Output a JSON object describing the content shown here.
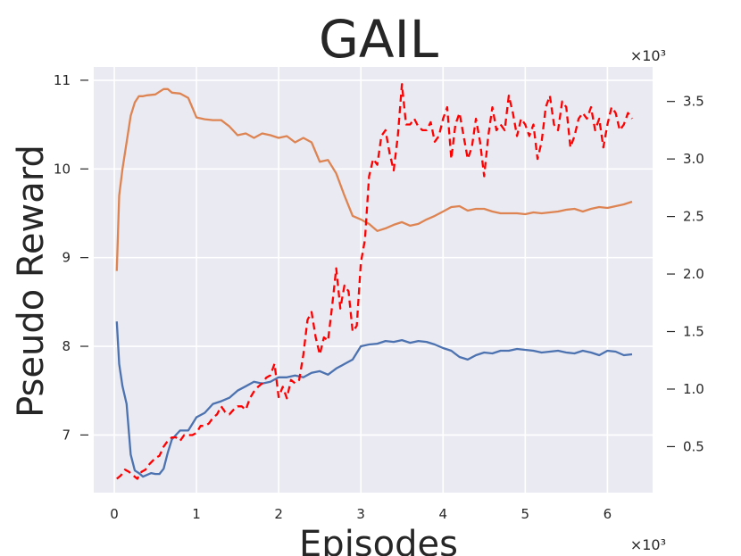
{
  "chart_data": {
    "type": "line",
    "title": "GAIL",
    "xlabel": "Episodes",
    "ylabel": "Pseudo Reward",
    "x_multiplier_label": "×10³",
    "y2_multiplier_label": "×10³",
    "xlim": [
      -0.25,
      6.55
    ],
    "ylim": [
      6.35,
      11.15
    ],
    "y2lim": [
      0.1,
      3.8
    ],
    "x_ticks": [
      0,
      1,
      2,
      3,
      4,
      5,
      6
    ],
    "x_tick_labels": [
      "0",
      "1",
      "2",
      "3",
      "4",
      "5",
      "6"
    ],
    "y_ticks": [
      7,
      8,
      9,
      10,
      11
    ],
    "y_tick_labels": [
      "7",
      "8",
      "9",
      "10",
      "11"
    ],
    "y2_ticks": [
      0.5,
      1.0,
      1.5,
      2.0,
      2.5,
      3.0,
      3.5
    ],
    "y2_tick_labels": [
      "0.5",
      "1.0",
      "1.5",
      "2.0",
      "2.5",
      "3.0",
      "3.5"
    ],
    "grid": true,
    "background": "#eaeaf2",
    "series": [
      {
        "axis": "left",
        "color": "#dd8452",
        "style": "solid",
        "x": [
          0.03,
          0.06,
          0.1,
          0.15,
          0.2,
          0.25,
          0.3,
          0.35,
          0.4,
          0.5,
          0.55,
          0.6,
          0.65,
          0.7,
          0.8,
          0.9,
          1.0,
          1.1,
          1.2,
          1.3,
          1.4,
          1.5,
          1.6,
          1.7,
          1.8,
          1.9,
          2.0,
          2.1,
          2.2,
          2.3,
          2.4,
          2.5,
          2.6,
          2.7,
          2.8,
          2.9,
          3.0,
          3.1,
          3.2,
          3.3,
          3.4,
          3.5,
          3.6,
          3.7,
          3.8,
          3.9,
          4.0,
          4.1,
          4.2,
          4.3,
          4.4,
          4.5,
          4.6,
          4.7,
          4.8,
          4.9,
          5.0,
          5.1,
          5.2,
          5.3,
          5.4,
          5.5,
          5.6,
          5.7,
          5.8,
          5.9,
          6.0,
          6.1,
          6.2,
          6.3
        ],
        "y": [
          8.85,
          9.7,
          10.0,
          10.3,
          10.6,
          10.75,
          10.82,
          10.82,
          10.83,
          10.84,
          10.87,
          10.9,
          10.9,
          10.86,
          10.85,
          10.8,
          10.58,
          10.56,
          10.55,
          10.55,
          10.48,
          10.38,
          10.4,
          10.35,
          10.4,
          10.38,
          10.35,
          10.37,
          10.3,
          10.35,
          10.3,
          10.08,
          10.1,
          9.95,
          9.7,
          9.47,
          9.43,
          9.38,
          9.3,
          9.33,
          9.37,
          9.4,
          9.36,
          9.38,
          9.43,
          9.47,
          9.52,
          9.57,
          9.58,
          9.53,
          9.55,
          9.55,
          9.52,
          9.5,
          9.5,
          9.5,
          9.49,
          9.51,
          9.5,
          9.51,
          9.52,
          9.54,
          9.55,
          9.52,
          9.55,
          9.57,
          9.56,
          9.58,
          9.6,
          9.63
        ]
      },
      {
        "axis": "left",
        "color": "#4c72b0",
        "style": "solid",
        "x": [
          0.03,
          0.06,
          0.1,
          0.15,
          0.2,
          0.25,
          0.3,
          0.35,
          0.4,
          0.45,
          0.5,
          0.55,
          0.6,
          0.65,
          0.7,
          0.8,
          0.9,
          1.0,
          1.1,
          1.2,
          1.3,
          1.4,
          1.5,
          1.6,
          1.7,
          1.8,
          1.9,
          2.0,
          2.1,
          2.2,
          2.3,
          2.4,
          2.5,
          2.6,
          2.7,
          2.8,
          2.9,
          3.0,
          3.1,
          3.2,
          3.3,
          3.4,
          3.5,
          3.6,
          3.7,
          3.8,
          3.9,
          4.0,
          4.1,
          4.2,
          4.3,
          4.4,
          4.5,
          4.6,
          4.7,
          4.8,
          4.9,
          5.0,
          5.1,
          5.2,
          5.3,
          5.4,
          5.5,
          5.6,
          5.7,
          5.8,
          5.9,
          6.0,
          6.1,
          6.2,
          6.3
        ],
        "y": [
          8.28,
          7.8,
          7.55,
          7.35,
          6.78,
          6.6,
          6.57,
          6.53,
          6.55,
          6.57,
          6.56,
          6.56,
          6.62,
          6.8,
          6.95,
          7.05,
          7.05,
          7.2,
          7.25,
          7.35,
          7.38,
          7.42,
          7.5,
          7.55,
          7.6,
          7.58,
          7.6,
          7.65,
          7.65,
          7.67,
          7.65,
          7.7,
          7.72,
          7.68,
          7.75,
          7.8,
          7.85,
          8.0,
          8.02,
          8.03,
          8.06,
          8.05,
          8.07,
          8.04,
          8.06,
          8.05,
          8.02,
          7.98,
          7.95,
          7.88,
          7.85,
          7.9,
          7.93,
          7.92,
          7.95,
          7.95,
          7.97,
          7.96,
          7.95,
          7.93,
          7.94,
          7.95,
          7.93,
          7.92,
          7.95,
          7.93,
          7.9,
          7.95,
          7.94,
          7.9,
          7.91
        ]
      },
      {
        "axis": "right",
        "color": "#ff0000",
        "style": "dashed",
        "x": [
          0.03,
          0.08,
          0.13,
          0.18,
          0.23,
          0.28,
          0.33,
          0.38,
          0.43,
          0.5,
          0.55,
          0.6,
          0.65,
          0.7,
          0.75,
          0.8,
          0.85,
          0.9,
          0.95,
          1.0,
          1.05,
          1.1,
          1.15,
          1.2,
          1.25,
          1.3,
          1.35,
          1.4,
          1.45,
          1.5,
          1.55,
          1.6,
          1.65,
          1.7,
          1.75,
          1.8,
          1.85,
          1.9,
          1.95,
          2.0,
          2.05,
          2.1,
          2.15,
          2.2,
          2.25,
          2.3,
          2.35,
          2.4,
          2.45,
          2.5,
          2.55,
          2.6,
          2.65,
          2.7,
          2.75,
          2.8,
          2.85,
          2.9,
          2.95,
          3.0,
          3.05,
          3.1,
          3.15,
          3.2,
          3.25,
          3.3,
          3.35,
          3.4,
          3.45,
          3.5,
          3.55,
          3.6,
          3.65,
          3.7,
          3.75,
          3.8,
          3.85,
          3.9,
          3.95,
          4.0,
          4.05,
          4.1,
          4.15,
          4.2,
          4.25,
          4.3,
          4.35,
          4.4,
          4.45,
          4.5,
          4.55,
          4.6,
          4.65,
          4.7,
          4.75,
          4.8,
          4.85,
          4.9,
          4.95,
          5.0,
          5.05,
          5.1,
          5.15,
          5.2,
          5.25,
          5.3,
          5.35,
          5.4,
          5.45,
          5.5,
          5.55,
          5.6,
          5.65,
          5.7,
          5.75,
          5.8,
          5.85,
          5.9,
          5.95,
          6.0,
          6.05,
          6.1,
          6.15,
          6.2,
          6.25,
          6.3
        ],
        "y": [
          0.22,
          0.25,
          0.3,
          0.28,
          0.25,
          0.22,
          0.28,
          0.3,
          0.35,
          0.4,
          0.42,
          0.5,
          0.55,
          0.58,
          0.58,
          0.55,
          0.6,
          0.6,
          0.6,
          0.62,
          0.68,
          0.68,
          0.7,
          0.75,
          0.78,
          0.85,
          0.8,
          0.78,
          0.82,
          0.85,
          0.85,
          0.82,
          0.92,
          0.98,
          1.02,
          1.05,
          1.1,
          1.12,
          1.22,
          0.93,
          1.02,
          0.92,
          1.08,
          1.05,
          1.08,
          1.3,
          1.6,
          1.67,
          1.45,
          1.3,
          1.45,
          1.42,
          1.72,
          2.05,
          1.7,
          1.9,
          1.85,
          1.5,
          1.55,
          2.1,
          2.3,
          2.85,
          3.0,
          2.95,
          3.2,
          3.25,
          3.05,
          2.9,
          3.2,
          3.65,
          3.3,
          3.3,
          3.35,
          3.28,
          3.25,
          3.25,
          3.32,
          3.15,
          3.2,
          3.35,
          3.45,
          3.0,
          3.3,
          3.4,
          3.2,
          3.0,
          3.1,
          3.35,
          3.15,
          2.85,
          3.2,
          3.45,
          3.25,
          3.3,
          3.25,
          3.55,
          3.4,
          3.2,
          3.35,
          3.3,
          3.2,
          3.3,
          3.0,
          3.15,
          3.45,
          3.55,
          3.3,
          3.25,
          3.5,
          3.45,
          3.1,
          3.2,
          3.35,
          3.4,
          3.35,
          3.45,
          3.25,
          3.35,
          3.1,
          3.3,
          3.45,
          3.4,
          3.25,
          3.3,
          3.4,
          3.35
        ]
      }
    ]
  }
}
